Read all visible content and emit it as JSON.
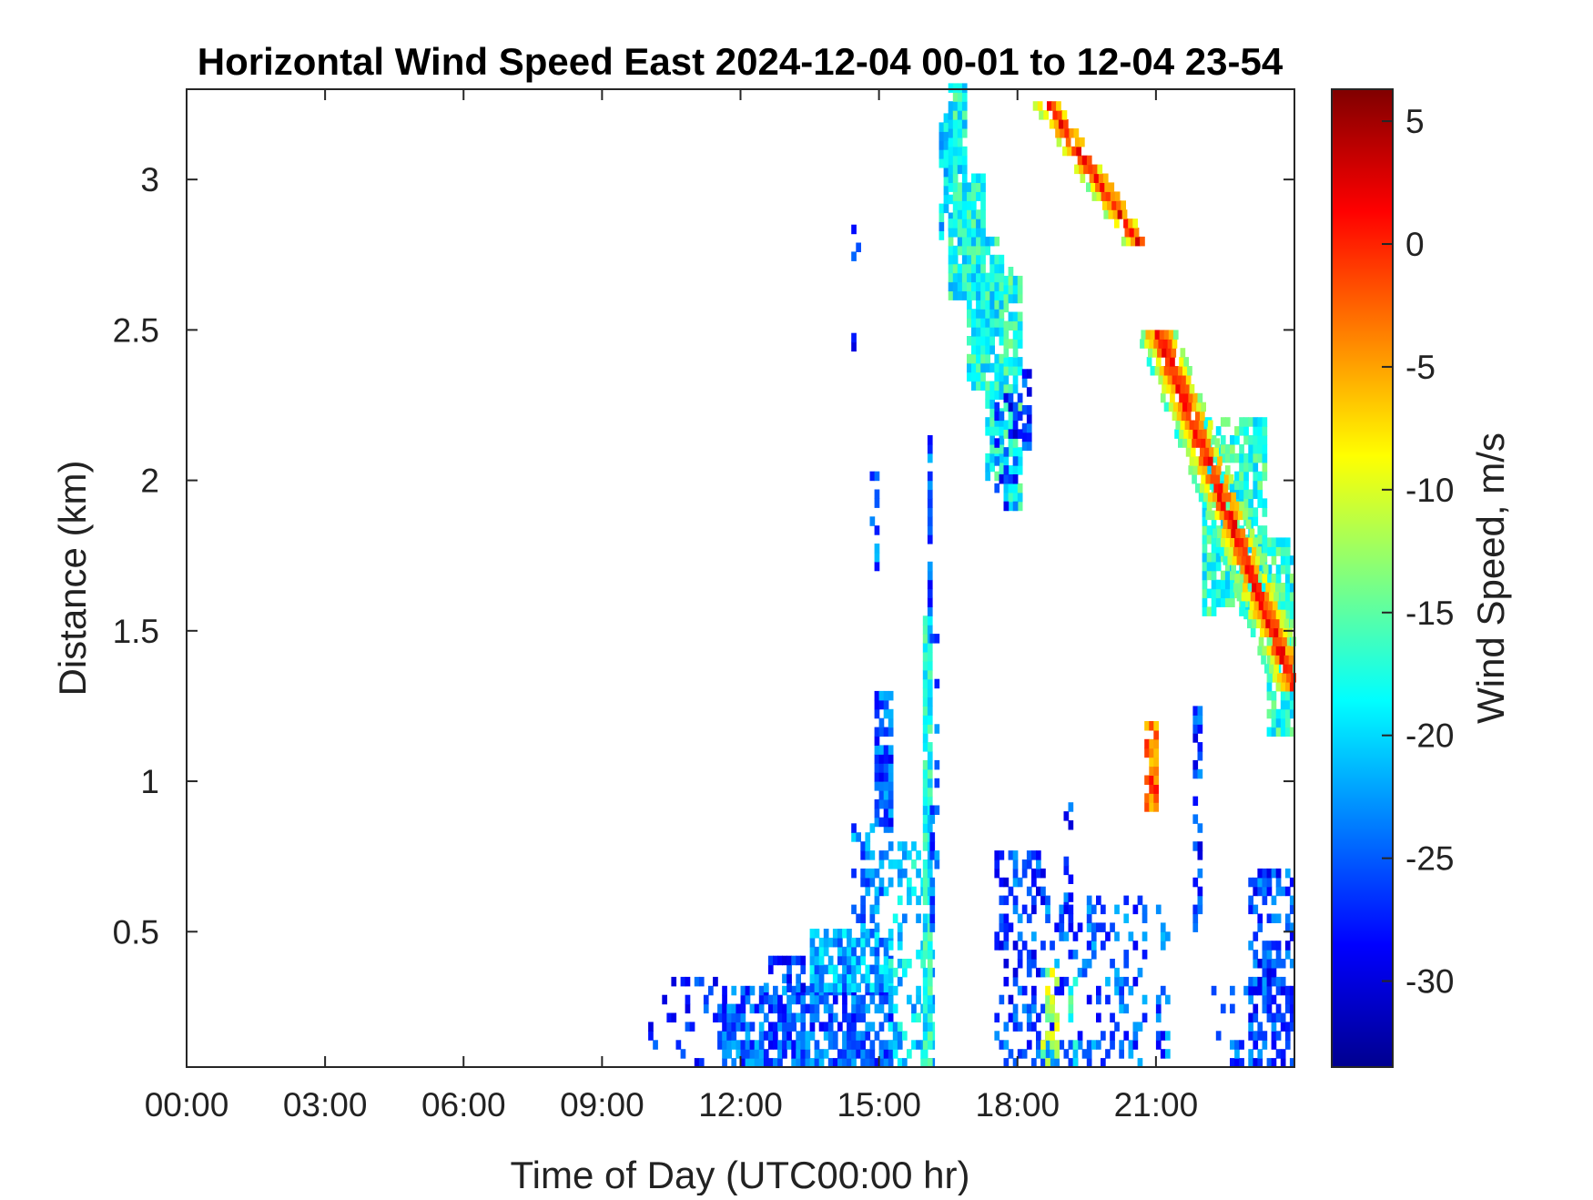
{
  "chart_data": {
    "type": "heatmap",
    "title": "Horizontal Wind Speed East 2024-12-04 00-01 to 12-04 23-54",
    "xlabel": "Time of Day (UTC00:00 hr)",
    "ylabel": "Distance (km)",
    "colorbar_label": "Wind Speed, m/s",
    "colormap": "jet",
    "xlim": [
      0,
      24
    ],
    "ylim": [
      0.05,
      3.3
    ],
    "clim": [
      -33.5,
      6.3
    ],
    "xticks": [
      0,
      3,
      6,
      9,
      12,
      15,
      18,
      21
    ],
    "xtick_labels": [
      "00:00",
      "03:00",
      "06:00",
      "09:00",
      "12:00",
      "15:00",
      "18:00",
      "21:00"
    ],
    "yticks": [
      0.5,
      1,
      1.5,
      2,
      2.5,
      3
    ],
    "ytick_labels": [
      "0.5",
      "1",
      "1.5",
      "2",
      "2.5",
      "3"
    ],
    "cticks": [
      5,
      0,
      -5,
      -10,
      -15,
      -20,
      -25,
      -30
    ],
    "ctick_labels": [
      "5",
      "0",
      "-5",
      "-10",
      "-15",
      "-20",
      "-25",
      "-30"
    ],
    "grid": false,
    "regions": [
      {
        "t0": 11.5,
        "t1": 15.3,
        "d0": 0.05,
        "d1": 0.3,
        "v": -25,
        "density": 0.72
      },
      {
        "t0": 12.5,
        "t1": 13.4,
        "d0": 0.3,
        "d1": 0.42,
        "v": -26,
        "density": 0.55
      },
      {
        "t0": 13.5,
        "t1": 15.3,
        "d0": 0.3,
        "d1": 0.5,
        "v": -22,
        "density": 0.8
      },
      {
        "t0": 14.4,
        "t1": 15.3,
        "d0": 0.5,
        "d1": 0.85,
        "v": -24,
        "density": 0.5
      },
      {
        "t0": 14.9,
        "t1": 15.3,
        "d0": 0.85,
        "d1": 1.3,
        "v": -25,
        "density": 0.8
      },
      {
        "t0": 10.0,
        "t1": 11.5,
        "d0": 0.05,
        "d1": 0.35,
        "v": -27,
        "density": 0.12
      },
      {
        "t0": 15.2,
        "t1": 16.2,
        "d0": 0.05,
        "d1": 0.8,
        "v": -20,
        "density": 0.35
      },
      {
        "t0": 15.95,
        "t1": 16.12,
        "d0": 0.05,
        "d1": 1.55,
        "v": -18,
        "density": 0.9
      },
      {
        "t0": 16.05,
        "t1": 16.15,
        "d0": 1.55,
        "d1": 2.15,
        "v": -25,
        "density": 0.7
      },
      {
        "t0": 16.1,
        "t1": 16.3,
        "d0": 0.5,
        "d1": 0.95,
        "v": -25,
        "density": 0.5
      },
      {
        "t0": 16.1,
        "t1": 16.3,
        "d0": 0.95,
        "d1": 1.5,
        "v": -26,
        "density": 0.15
      },
      {
        "t0": 16.3,
        "t1": 16.6,
        "d0": 2.8,
        "d1": 3.2,
        "v": -20,
        "density": 0.8
      },
      {
        "t0": 16.5,
        "t1": 16.9,
        "d0": 2.6,
        "d1": 3.3,
        "v": -18,
        "density": 0.95
      },
      {
        "t0": 16.9,
        "t1": 17.3,
        "d0": 2.3,
        "d1": 3.0,
        "v": -18,
        "density": 0.9
      },
      {
        "t0": 17.3,
        "t1": 17.7,
        "d0": 2.0,
        "d1": 2.8,
        "v": -18,
        "density": 0.85
      },
      {
        "t0": 17.7,
        "t1": 18.1,
        "d0": 1.9,
        "d1": 2.7,
        "v": -17,
        "density": 0.8
      },
      {
        "t0": 18.1,
        "t1": 18.3,
        "d0": 2.1,
        "d1": 2.35,
        "v": -27,
        "density": 0.7
      },
      {
        "t0": 17.5,
        "t1": 18.1,
        "d0": 1.9,
        "d1": 2.3,
        "v": -27,
        "density": 0.3
      },
      {
        "t0": 14.4,
        "t1": 14.6,
        "d0": 2.4,
        "d1": 3.0,
        "v": -26,
        "density": 0.2
      },
      {
        "t0": 14.8,
        "t1": 14.95,
        "d0": 1.7,
        "d1": 2.05,
        "v": -25,
        "density": 0.4
      },
      {
        "t0": 17.5,
        "t1": 18.6,
        "d0": 0.05,
        "d1": 0.75,
        "v": -26,
        "density": 0.4
      },
      {
        "t0": 18.6,
        "t1": 20.8,
        "d0": 0.05,
        "d1": 0.6,
        "v": -25,
        "density": 0.3
      },
      {
        "t0": 18.5,
        "t1": 18.85,
        "d0": 0.05,
        "d1": 0.38,
        "v": -12,
        "density": 0.5
      },
      {
        "t0": 19.1,
        "t1": 19.3,
        "d0": 0.05,
        "d1": 0.35,
        "v": -17,
        "density": 0.5
      },
      {
        "t0": 19.0,
        "t1": 19.15,
        "d0": 0.6,
        "d1": 0.95,
        "v": -26,
        "density": 0.4
      },
      {
        "t0": 21.0,
        "t1": 21.3,
        "d0": 0.05,
        "d1": 0.7,
        "v": -25,
        "density": 0.25
      },
      {
        "t0": 21.8,
        "t1": 22.0,
        "d0": 0.5,
        "d1": 1.25,
        "v": -26,
        "density": 0.5
      },
      {
        "t0": 22.2,
        "t1": 23.0,
        "d0": 0.05,
        "d1": 0.3,
        "v": -25,
        "density": 0.2
      },
      {
        "t0": 23.0,
        "t1": 23.95,
        "d0": 0.05,
        "d1": 0.7,
        "v": -26,
        "density": 0.55
      },
      {
        "t0": 20.75,
        "t1": 21.0,
        "d0": 0.9,
        "d1": 1.2,
        "v": -3,
        "density": 0.8
      },
      {
        "t0": 23.4,
        "t1": 23.95,
        "d0": 1.15,
        "d1": 1.8,
        "v": -17,
        "density": 0.85
      },
      {
        "t0": 22.0,
        "t1": 23.4,
        "d0": 1.55,
        "d1": 2.2,
        "v": -17,
        "density": 0.8
      }
    ],
    "bands": [
      {
        "d_start": 3.25,
        "d_end": 2.78,
        "t_start": 18.55,
        "t_end": 20.55,
        "width": 0.6,
        "v_center": 1,
        "v_edge": -12
      },
      {
        "d_start": 2.48,
        "d_end": 1.3,
        "t_start": 21.0,
        "t_end": 23.95,
        "width": 0.9,
        "v_center": 2,
        "v_edge": -16
      }
    ]
  }
}
